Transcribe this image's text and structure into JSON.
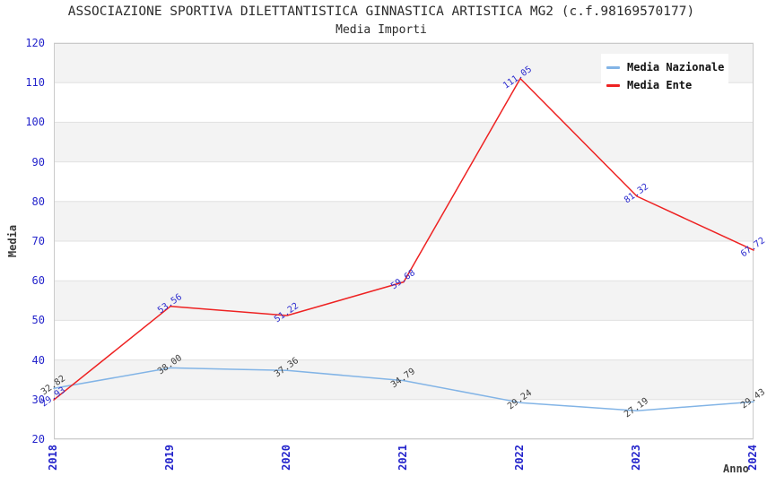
{
  "chart_data": {
    "type": "line",
    "title": "ASSOCIAZIONE SPORTIVA DILETTANTISTICA GINNASTICA ARTISTICA MG2 (c.f.98169570177)",
    "subtitle": "Media Importi",
    "xlabel": "Anno",
    "ylabel": "Media",
    "x": [
      "2018",
      "2019",
      "2020",
      "2021",
      "2022",
      "2023",
      "2024"
    ],
    "series": [
      {
        "name": "Media Nazionale",
        "color": "#82b4e6",
        "label_color": "#3d3d3d",
        "values": [
          32.82,
          38.0,
          37.36,
          34.79,
          29.24,
          27.19,
          29.43
        ]
      },
      {
        "name": "Media Ente",
        "color": "#ee2222",
        "label_color": "#2a2ace",
        "values": [
          29.93,
          53.56,
          51.22,
          59.68,
          111.05,
          81.32,
          67.72
        ]
      }
    ],
    "ylim": [
      20,
      120
    ],
    "ytick_step": 10,
    "grid": "horizontal-bands-alternating",
    "legend_position": "top-right",
    "colors": {
      "band_gray": "#f3f3f3",
      "band_white": "#ffffff",
      "gridline": "#e1e1e1",
      "plot_border": "#cacaca",
      "tick_label": "#2323cb",
      "background": "#ffffff"
    }
  }
}
